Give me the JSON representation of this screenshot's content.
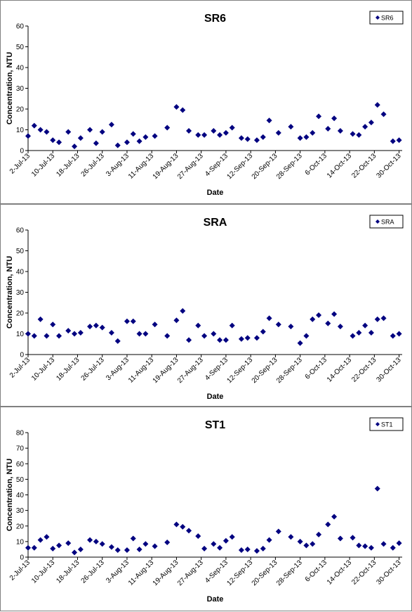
{
  "chart_data": [
    {
      "type": "scatter",
      "title": "SR6",
      "x_label": "Date",
      "y_label": "Concentration, NTU",
      "x": [
        "2013-07-02",
        "2013-07-04",
        "2013-07-06",
        "2013-07-08",
        "2013-07-10",
        "2013-07-12",
        "2013-07-15",
        "2013-07-17",
        "2013-07-19",
        "2013-07-22",
        "2013-07-24",
        "2013-07-26",
        "2013-07-29",
        "2013-07-31",
        "2013-08-03",
        "2013-08-05",
        "2013-08-07",
        "2013-08-09",
        "2013-08-12",
        "2013-08-16",
        "2013-08-19",
        "2013-08-21",
        "2013-08-23",
        "2013-08-26",
        "2013-08-28",
        "2013-08-31",
        "2013-09-02",
        "2013-09-04",
        "2013-09-06",
        "2013-09-09",
        "2013-09-11",
        "2013-09-14",
        "2013-09-16",
        "2013-09-18",
        "2013-09-21",
        "2013-09-25",
        "2013-09-28",
        "2013-09-30",
        "2013-10-02",
        "2013-10-04",
        "2013-10-07",
        "2013-10-09",
        "2013-10-11",
        "2013-10-15",
        "2013-10-17",
        "2013-10-19",
        "2013-10-21",
        "2013-10-23",
        "2013-10-25",
        "2013-10-28",
        "2013-10-30"
      ],
      "series": [
        {
          "name": "SR6",
          "color": "#000080",
          "values": [
            7,
            12,
            10,
            9,
            5,
            4,
            9,
            2,
            6,
            10,
            3.5,
            9,
            12.5,
            2.5,
            4,
            8,
            4.5,
            6.5,
            7,
            11,
            21,
            19.5,
            9.5,
            7.5,
            7.5,
            9.5,
            7.5,
            8.5,
            11,
            6,
            5.5,
            5,
            6.5,
            14.5,
            8.5,
            11.5,
            6,
            6.5,
            8.5,
            16.5,
            10.5,
            15.5,
            9.5,
            8,
            7.5,
            11.5,
            13.5,
            22,
            17.5,
            4.5,
            5
          ]
        }
      ],
      "xlim": [
        "2013-07-02",
        "2013-10-31"
      ],
      "xticks": [
        {
          "value": "2013-07-02",
          "label": "2-Jul-13"
        },
        {
          "value": "2013-07-10",
          "label": "10-Jul-13"
        },
        {
          "value": "2013-07-18",
          "label": "18-Jul-13"
        },
        {
          "value": "2013-07-26",
          "label": "26-Jul-13"
        },
        {
          "value": "2013-08-03",
          "label": "3-Aug-13"
        },
        {
          "value": "2013-08-11",
          "label": "11-Aug-13"
        },
        {
          "value": "2013-08-19",
          "label": "19-Aug-13"
        },
        {
          "value": "2013-08-27",
          "label": "27-Aug-13"
        },
        {
          "value": "2013-09-04",
          "label": "4-Sep-13"
        },
        {
          "value": "2013-09-12",
          "label": "12-Sep-13"
        },
        {
          "value": "2013-09-20",
          "label": "20-Sep-13"
        },
        {
          "value": "2013-09-28",
          "label": "28-Sep-13"
        },
        {
          "value": "2013-10-06",
          "label": "6-Oct-13"
        },
        {
          "value": "2013-10-14",
          "label": "14-Oct-13"
        },
        {
          "value": "2013-10-22",
          "label": "22-Oct-13"
        },
        {
          "value": "2013-10-30",
          "label": "30-Oct-13"
        }
      ],
      "ylim": [
        0,
        60
      ],
      "yticks": [
        0,
        10,
        20,
        30,
        40,
        50,
        60
      ],
      "legend": "top-right"
    },
    {
      "type": "scatter",
      "title": "SRA",
      "x_label": "Date",
      "y_label": "Concentration, NTU",
      "x": [
        "2013-07-02",
        "2013-07-04",
        "2013-07-06",
        "2013-07-08",
        "2013-07-10",
        "2013-07-12",
        "2013-07-15",
        "2013-07-17",
        "2013-07-19",
        "2013-07-22",
        "2013-07-24",
        "2013-07-26",
        "2013-07-29",
        "2013-07-31",
        "2013-08-03",
        "2013-08-05",
        "2013-08-07",
        "2013-08-09",
        "2013-08-12",
        "2013-08-16",
        "2013-08-19",
        "2013-08-21",
        "2013-08-23",
        "2013-08-26",
        "2013-08-28",
        "2013-08-31",
        "2013-09-02",
        "2013-09-04",
        "2013-09-06",
        "2013-09-09",
        "2013-09-11",
        "2013-09-14",
        "2013-09-16",
        "2013-09-18",
        "2013-09-21",
        "2013-09-25",
        "2013-09-28",
        "2013-09-30",
        "2013-10-02",
        "2013-10-04",
        "2013-10-07",
        "2013-10-09",
        "2013-10-11",
        "2013-10-15",
        "2013-10-17",
        "2013-10-19",
        "2013-10-21",
        "2013-10-23",
        "2013-10-25",
        "2013-10-28",
        "2013-10-30"
      ],
      "series": [
        {
          "name": "SRA",
          "color": "#000080",
          "values": [
            10,
            9,
            17,
            9,
            14.5,
            9,
            11.5,
            10,
            10.5,
            13.5,
            14,
            13,
            10.5,
            6.5,
            16,
            16,
            10,
            10,
            14.5,
            9,
            16.5,
            21,
            7,
            14,
            9,
            10,
            7,
            7,
            14,
            7.5,
            8,
            8,
            11,
            17.5,
            14.5,
            13.5,
            5.5,
            9,
            17,
            19,
            15,
            19.5,
            13.5,
            9,
            10.5,
            14,
            10.5,
            17,
            17.5,
            9,
            10
          ]
        }
      ],
      "xlim": [
        "2013-07-02",
        "2013-10-31"
      ],
      "xticks": [
        {
          "value": "2013-07-02",
          "label": "2-Jul-13"
        },
        {
          "value": "2013-07-10",
          "label": "10-Jul-13"
        },
        {
          "value": "2013-07-18",
          "label": "18-Jul-13"
        },
        {
          "value": "2013-07-26",
          "label": "26-Jul-13"
        },
        {
          "value": "2013-08-03",
          "label": "3-Aug-13"
        },
        {
          "value": "2013-08-11",
          "label": "11-Aug-13"
        },
        {
          "value": "2013-08-19",
          "label": "19-Aug-13"
        },
        {
          "value": "2013-08-27",
          "label": "27-Aug-13"
        },
        {
          "value": "2013-09-04",
          "label": "4-Sep-13"
        },
        {
          "value": "2013-09-12",
          "label": "12-Sep-13"
        },
        {
          "value": "2013-09-20",
          "label": "20-Sep-13"
        },
        {
          "value": "2013-09-28",
          "label": "28-Sep-13"
        },
        {
          "value": "2013-10-06",
          "label": "6-Oct-13"
        },
        {
          "value": "2013-10-14",
          "label": "14-Oct-13"
        },
        {
          "value": "2013-10-22",
          "label": "22-Oct-13"
        },
        {
          "value": "2013-10-30",
          "label": "30-Oct-13"
        }
      ],
      "ylim": [
        0,
        60
      ],
      "yticks": [
        0,
        10,
        20,
        30,
        40,
        50,
        60
      ],
      "legend": "top-right"
    },
    {
      "type": "scatter",
      "title": "ST1",
      "x_label": "Date",
      "y_label": "Concentration, NTU",
      "x": [
        "2013-07-02",
        "2013-07-04",
        "2013-07-06",
        "2013-07-08",
        "2013-07-10",
        "2013-07-12",
        "2013-07-15",
        "2013-07-17",
        "2013-07-19",
        "2013-07-22",
        "2013-07-24",
        "2013-07-26",
        "2013-07-29",
        "2013-07-31",
        "2013-08-03",
        "2013-08-05",
        "2013-08-07",
        "2013-08-09",
        "2013-08-12",
        "2013-08-16",
        "2013-08-19",
        "2013-08-21",
        "2013-08-23",
        "2013-08-26",
        "2013-08-28",
        "2013-08-31",
        "2013-09-02",
        "2013-09-04",
        "2013-09-06",
        "2013-09-09",
        "2013-09-11",
        "2013-09-14",
        "2013-09-16",
        "2013-09-18",
        "2013-09-21",
        "2013-09-25",
        "2013-09-28",
        "2013-09-30",
        "2013-10-02",
        "2013-10-04",
        "2013-10-07",
        "2013-10-09",
        "2013-10-11",
        "2013-10-15",
        "2013-10-17",
        "2013-10-19",
        "2013-10-21",
        "2013-10-23",
        "2013-10-25",
        "2013-10-28",
        "2013-10-30"
      ],
      "series": [
        {
          "name": "ST1",
          "color": "#000080",
          "values": [
            6,
            6,
            11,
            13,
            5.5,
            7.5,
            9,
            3,
            5,
            11,
            10,
            8.5,
            6.5,
            4.5,
            4.5,
            12,
            5,
            8.5,
            7,
            9.5,
            21,
            19.5,
            17,
            13.5,
            5.5,
            8.5,
            6,
            10.5,
            13,
            4.5,
            5,
            4,
            5.5,
            11,
            16.5,
            13,
            10,
            7.5,
            8.5,
            14.5,
            21,
            26,
            12,
            12.5,
            7.5,
            7,
            6,
            44,
            8.5,
            6,
            9
          ]
        }
      ],
      "xlim": [
        "2013-07-02",
        "2013-10-31"
      ],
      "xticks": [
        {
          "value": "2013-07-02",
          "label": "2-Jul-13"
        },
        {
          "value": "2013-07-10",
          "label": "10-Jul-13"
        },
        {
          "value": "2013-07-18",
          "label": "18-Jul-13"
        },
        {
          "value": "2013-07-26",
          "label": "26-Jul-13"
        },
        {
          "value": "2013-08-03",
          "label": "3-Aug-13"
        },
        {
          "value": "2013-08-11",
          "label": "11-Aug-13"
        },
        {
          "value": "2013-08-19",
          "label": "19-Aug-13"
        },
        {
          "value": "2013-08-27",
          "label": "27-Aug-13"
        },
        {
          "value": "2013-09-04",
          "label": "4-Sep-13"
        },
        {
          "value": "2013-09-12",
          "label": "12-Sep-13"
        },
        {
          "value": "2013-09-20",
          "label": "20-Sep-13"
        },
        {
          "value": "2013-09-28",
          "label": "28-Sep-13"
        },
        {
          "value": "2013-10-06",
          "label": "6-Oct-13"
        },
        {
          "value": "2013-10-14",
          "label": "14-Oct-13"
        },
        {
          "value": "2013-10-22",
          "label": "22-Oct-13"
        },
        {
          "value": "2013-10-30",
          "label": "30-Oct-13"
        }
      ],
      "ylim": [
        0,
        80
      ],
      "yticks": [
        0,
        10,
        20,
        30,
        40,
        50,
        60,
        70,
        80
      ],
      "legend": "top-right"
    }
  ]
}
